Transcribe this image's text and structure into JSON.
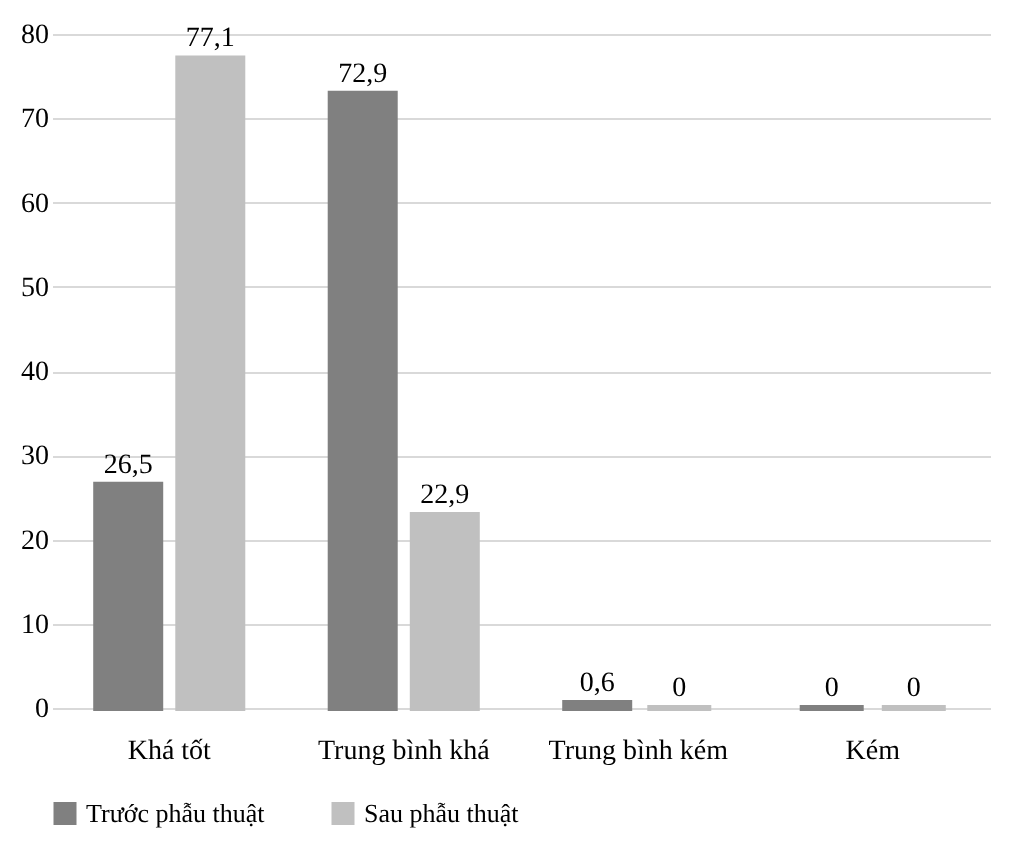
{
  "chart_data": {
    "type": "bar",
    "categories": [
      "Khá tốt",
      "Trung bình khá",
      "Trung bình kém",
      "Kém"
    ],
    "series": [
      {
        "name": "Trước phẫu thuật",
        "color": "#808080",
        "values": [
          26.5,
          72.9,
          0.6,
          0
        ],
        "value_labels": [
          "26,5",
          "72,9",
          "0,6",
          "0"
        ]
      },
      {
        "name": "Sau phẫu thuật",
        "color": "#c0c0c0",
        "values": [
          77.1,
          22.9,
          0,
          0
        ],
        "value_labels": [
          "77,1",
          "22,9",
          "0",
          "0"
        ]
      }
    ],
    "ylim": [
      0,
      80
    ],
    "yticks": [
      0,
      10,
      20,
      30,
      40,
      50,
      60,
      70,
      80
    ],
    "grid": "y",
    "legend": "bottom"
  }
}
